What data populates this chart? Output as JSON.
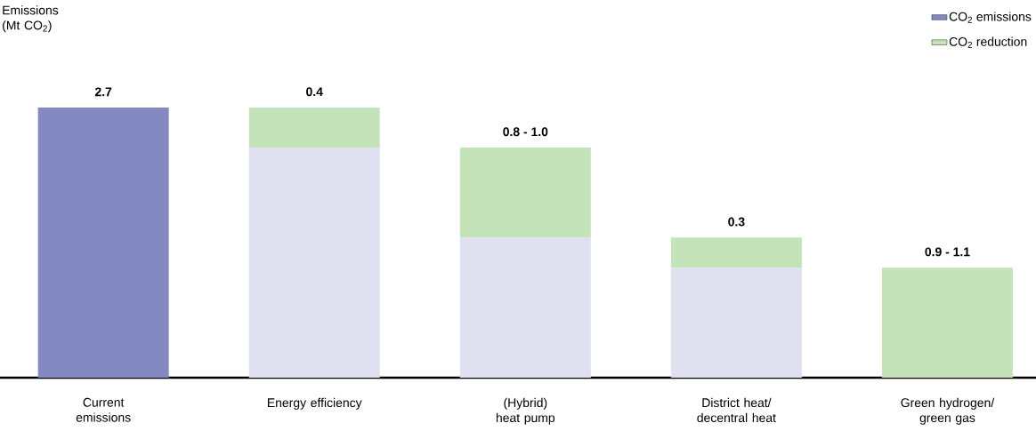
{
  "chart_data": {
    "type": "bar",
    "stacked": true,
    "tick_labels": "x",
    "legend": "top right",
    "categories": [
      "Current emissions",
      "Energy efficiency",
      "(Hybrid) heat pump",
      "District heat/ decentral heat",
      "Green hydrogen/ green gas"
    ],
    "series": [
      {
        "name": "CO$_{2}$ emissions",
        "color": "#8589c1",
        "colors": [
          "#8589c1",
          "#dfe0f0",
          "#dfe0f0",
          "#dfe0f0",
          "#dfe0f0"
        ],
        "values": [
          2.7,
          2.3,
          1.4,
          1.1,
          null
        ],
        "value_labels": [
          "2.7",
          null,
          null,
          null,
          null
        ]
      },
      {
        "name": "CO$_{2}$ reduction",
        "color": "#c5e3b8",
        "values": [
          null,
          0.4,
          0.9,
          0.3,
          1.1
        ],
        "value_labels": [
          null,
          "0.4",
          null,
          "0.3",
          null
        ]
      }
    ],
    "annotations": [
      {
        "text": "0.8 - 1.0",
        "x": "(Hybrid) heat pump",
        "y": 2.3
      },
      {
        "text": "0.9 - 1.1",
        "x": "Green hydrogen/ green gas",
        "y": 1.1
      },
      "Emissions (Mt CO$_{2}$)"
    ]
  }
}
